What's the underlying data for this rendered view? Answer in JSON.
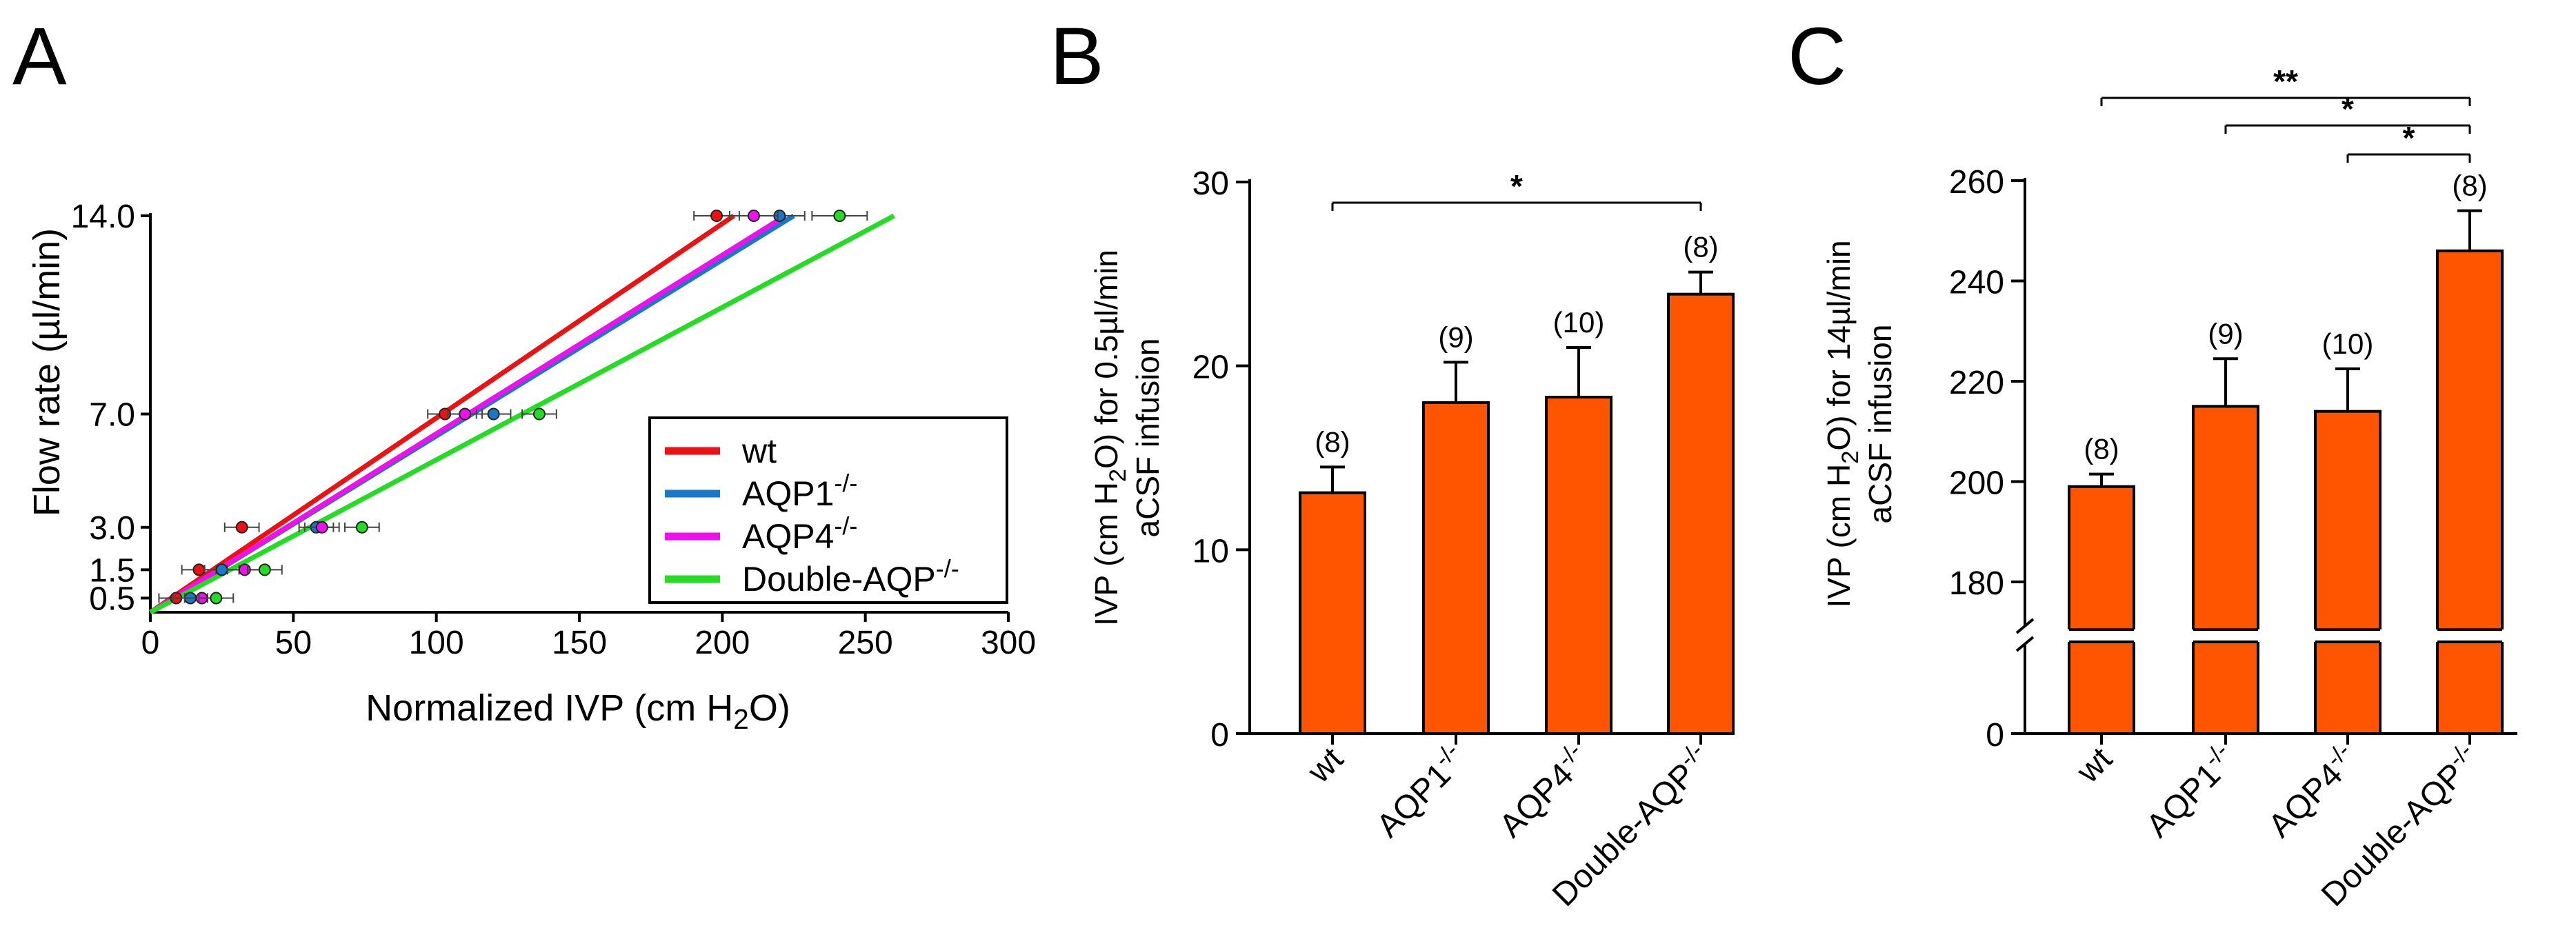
{
  "panels": {
    "a": {
      "letter": "A"
    },
    "b": {
      "letter": "B"
    },
    "c": {
      "letter": "C"
    }
  },
  "chart_data": [
    {
      "panel": "A",
      "type": "line",
      "xlabel": "Normalized IVP (cm H2O)",
      "ylabel": "Flow rate (µl/min)",
      "xlim": [
        0,
        300
      ],
      "xticks": [
        0,
        50,
        100,
        150,
        200,
        250,
        300
      ],
      "yticks": [
        0.5,
        1.5,
        3.0,
        7.0,
        14.0
      ],
      "ytick_labels": [
        "0.5",
        "1.5",
        "3.0",
        "7.0",
        "14.0"
      ],
      "legend_position": "lower-right",
      "series": [
        {
          "name": "wt",
          "color": "#ee1111",
          "points": [
            {
              "x": 9,
              "y": 0.5
            },
            {
              "x": 17,
              "y": 1.5
            },
            {
              "x": 32,
              "y": 3.0
            },
            {
              "x": 103,
              "y": 7.0
            },
            {
              "x": 198,
              "y": 14.0
            }
          ],
          "fit": [
            {
              "x": 0,
              "y": 0
            },
            {
              "x": 204,
              "y": 14.0
            }
          ]
        },
        {
          "name": "AQP1",
          "sup": "-/-",
          "color": "#1a78c8",
          "points": [
            {
              "x": 14,
              "y": 0.5
            },
            {
              "x": 25,
              "y": 1.5
            },
            {
              "x": 58,
              "y": 3.0
            },
            {
              "x": 120,
              "y": 7.0
            },
            {
              "x": 220,
              "y": 14.0
            }
          ],
          "fit": [
            {
              "x": 0,
              "y": 0
            },
            {
              "x": 225,
              "y": 14.0
            }
          ]
        },
        {
          "name": "AQP4",
          "sup": "-/-",
          "color": "#ee11ee",
          "points": [
            {
              "x": 18,
              "y": 0.5
            },
            {
              "x": 33,
              "y": 1.5
            },
            {
              "x": 60,
              "y": 3.0
            },
            {
              "x": 110,
              "y": 7.0
            },
            {
              "x": 211,
              "y": 14.0
            }
          ],
          "fit": [
            {
              "x": 0,
              "y": 0
            },
            {
              "x": 222,
              "y": 14.0
            }
          ]
        },
        {
          "name": "Double-AQP",
          "sup": "-/-",
          "color": "#22dd22",
          "points": [
            {
              "x": 23,
              "y": 0.5
            },
            {
              "x": 40,
              "y": 1.5
            },
            {
              "x": 74,
              "y": 3.0
            },
            {
              "x": 136,
              "y": 7.0
            },
            {
              "x": 241,
              "y": 14.0
            }
          ],
          "fit": [
            {
              "x": 0,
              "y": 0
            },
            {
              "x": 260,
              "y": 14.0
            }
          ]
        }
      ]
    },
    {
      "panel": "B",
      "type": "bar",
      "ylabel_line1": "IVP (cm H2O) for  0.5µl/min",
      "ylabel_line2": "aCSF infusion",
      "ylim": [
        0,
        30
      ],
      "yticks": [
        0,
        10,
        20,
        30
      ],
      "bar_color": "#ff5500",
      "categories": [
        "wt",
        "AQP1-/-",
        "AQP4-/-",
        "Double-AQP-/-"
      ],
      "category_base": [
        "wt",
        "AQP1",
        "AQP4",
        "Double-AQP"
      ],
      "category_sup": [
        "",
        "-/-",
        "-/-",
        "-/-"
      ],
      "values": [
        13.1,
        18.0,
        18.3,
        23.9
      ],
      "errors": [
        1.4,
        2.2,
        2.7,
        1.2
      ],
      "n_labels": [
        "(8)",
        "(9)",
        "(10)",
        "(8)"
      ],
      "significance": [
        {
          "from": 0,
          "to": 3,
          "label": "*"
        }
      ]
    },
    {
      "panel": "C",
      "type": "bar",
      "ylabel_line1": "IVP (cm H2O) for 14µl/min",
      "ylabel_line2": "aCSF infusion",
      "ylim": [
        170,
        260
      ],
      "yticks": [
        0,
        180,
        200,
        220,
        240,
        260
      ],
      "axis_break": true,
      "bar_color": "#ff5500",
      "categories": [
        "wt",
        "AQP1-/-",
        "AQP4-/-",
        "Double-AQP-/-"
      ],
      "category_base": [
        "wt",
        "AQP1",
        "AQP4",
        "Double-AQP"
      ],
      "category_sup": [
        "",
        "-/-",
        "-/-",
        "-/-"
      ],
      "values": [
        199,
        215,
        214,
        246
      ],
      "errors": [
        2.5,
        9.5,
        8.5,
        8
      ],
      "n_labels": [
        "(8)",
        "(9)",
        "(10)",
        "(8)"
      ],
      "significance": [
        {
          "from": 0,
          "to": 3,
          "label": "**"
        },
        {
          "from": 1,
          "to": 3,
          "label": "*"
        },
        {
          "from": 2,
          "to": 3,
          "label": "*"
        }
      ]
    }
  ]
}
